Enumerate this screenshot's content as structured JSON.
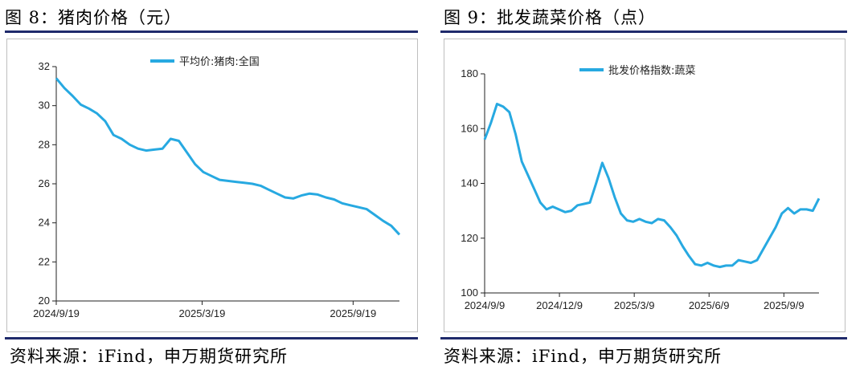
{
  "left": {
    "title": "图 8：猪肉价格（元）",
    "source": "资料来源：iFind，申万期货研究所"
  },
  "right": {
    "title": "图 9：批发蔬菜价格（点）",
    "source": "资料来源：iFind，申万期货研究所"
  },
  "colors": {
    "line": "#27a9e1",
    "rule": "#1f2a6b",
    "axis": "#222222"
  },
  "chart_data": [
    {
      "type": "line",
      "title": "",
      "legend": "平均价:猪肉:全国",
      "legend_position": "top-center",
      "x_ticks": [
        "2024/9/19",
        "2025/3/19",
        "2025/9/19"
      ],
      "x_tick_positions": [
        0,
        0.425,
        0.865
      ],
      "ylim": [
        20,
        32
      ],
      "y_ticks": [
        20,
        22,
        24,
        26,
        28,
        30,
        32
      ],
      "series": [
        {
          "name": "平均价:猪肉:全国",
          "values": [
            31.4,
            30.9,
            30.5,
            30.05,
            29.85,
            29.6,
            29.2,
            28.5,
            28.3,
            28.0,
            27.8,
            27.7,
            27.75,
            27.8,
            28.3,
            28.2,
            27.6,
            27.0,
            26.6,
            26.4,
            26.2,
            26.15,
            26.1,
            26.05,
            26.0,
            25.9,
            25.7,
            25.5,
            25.3,
            25.25,
            25.4,
            25.5,
            25.45,
            25.3,
            25.2,
            25.0,
            24.9,
            24.8,
            24.7,
            24.4,
            24.1,
            23.85,
            23.4
          ]
        }
      ]
    },
    {
      "type": "line",
      "title": "",
      "legend": "批发价格指数:蔬菜",
      "legend_position": "top-center",
      "x_ticks": [
        "2024/9/9",
        "2024/12/9",
        "2025/3/9",
        "2025/6/9",
        "2025/9/9"
      ],
      "ylim": [
        100,
        180
      ],
      "y_ticks": [
        100,
        120,
        140,
        160,
        180
      ],
      "series": [
        {
          "name": "批发价格指数:蔬菜",
          "values": [
            156,
            162,
            169,
            168,
            166,
            158,
            148,
            143,
            138,
            133,
            130.5,
            131.5,
            130.5,
            129.5,
            130,
            132,
            132.5,
            133,
            140,
            147.5,
            142,
            135,
            129,
            126.5,
            126,
            127,
            126,
            125.5,
            127,
            126.5,
            124,
            121,
            117,
            113.5,
            110.5,
            110,
            111,
            110,
            109.5,
            110,
            110,
            112,
            111.5,
            111,
            112,
            116,
            120,
            124,
            129,
            131,
            129,
            130.5,
            130.5,
            130,
            134.5
          ]
        }
      ]
    }
  ]
}
